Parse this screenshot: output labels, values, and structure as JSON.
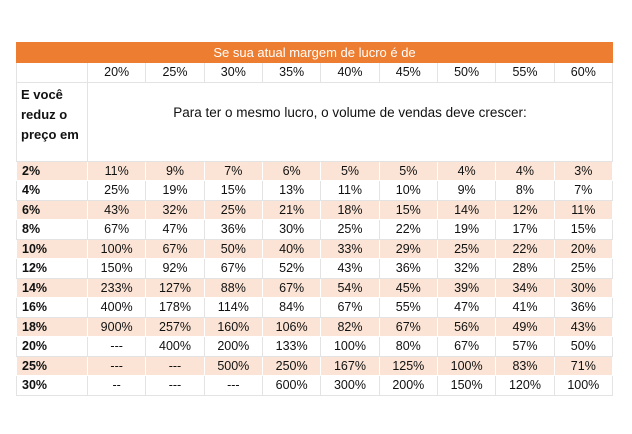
{
  "header": {
    "title": "Se sua atual margem de lucro é de"
  },
  "table": {
    "columns": [
      "20%",
      "25%",
      "30%",
      "35%",
      "40%",
      "45%",
      "50%",
      "55%",
      "60%"
    ],
    "row_header": "E você reduz o preço em",
    "subtitle": "Para ter o mesmo lucro, o volume de vendas deve crescer:",
    "rows": [
      {
        "label": "2%",
        "cells": [
          "11%",
          "9%",
          "7%",
          "6%",
          "5%",
          "5%",
          "4%",
          "4%",
          "3%"
        ]
      },
      {
        "label": "4%",
        "cells": [
          "25%",
          "19%",
          "15%",
          "13%",
          "11%",
          "10%",
          "9%",
          "8%",
          "7%"
        ]
      },
      {
        "label": "6%",
        "cells": [
          "43%",
          "32%",
          "25%",
          "21%",
          "18%",
          "15%",
          "14%",
          "12%",
          "11%"
        ]
      },
      {
        "label": "8%",
        "cells": [
          "67%",
          "47%",
          "36%",
          "30%",
          "25%",
          "22%",
          "19%",
          "17%",
          "15%"
        ]
      },
      {
        "label": "10%",
        "cells": [
          "100%",
          "67%",
          "50%",
          "40%",
          "33%",
          "29%",
          "25%",
          "22%",
          "20%"
        ]
      },
      {
        "label": "12%",
        "cells": [
          "150%",
          "92%",
          "67%",
          "52%",
          "43%",
          "36%",
          "32%",
          "28%",
          "25%"
        ]
      },
      {
        "label": "14%",
        "cells": [
          "233%",
          "127%",
          "88%",
          "67%",
          "54%",
          "45%",
          "39%",
          "34%",
          "30%"
        ]
      },
      {
        "label": "16%",
        "cells": [
          "400%",
          "178%",
          "114%",
          "84%",
          "67%",
          "55%",
          "47%",
          "41%",
          "36%"
        ]
      },
      {
        "label": "18%",
        "cells": [
          "900%",
          "257%",
          "160%",
          "106%",
          "82%",
          "67%",
          "56%",
          "49%",
          "43%"
        ]
      },
      {
        "label": "20%",
        "cells": [
          "---",
          "400%",
          "200%",
          "133%",
          "100%",
          "80%",
          "67%",
          "57%",
          "50%"
        ]
      },
      {
        "label": "25%",
        "cells": [
          "---",
          "---",
          "500%",
          "250%",
          "167%",
          "125%",
          "100%",
          "83%",
          "71%"
        ]
      },
      {
        "label": "30%",
        "cells": [
          "--",
          "---",
          "---",
          "600%",
          "300%",
          "200%",
          "150%",
          "120%",
          "100%"
        ]
      }
    ]
  }
}
